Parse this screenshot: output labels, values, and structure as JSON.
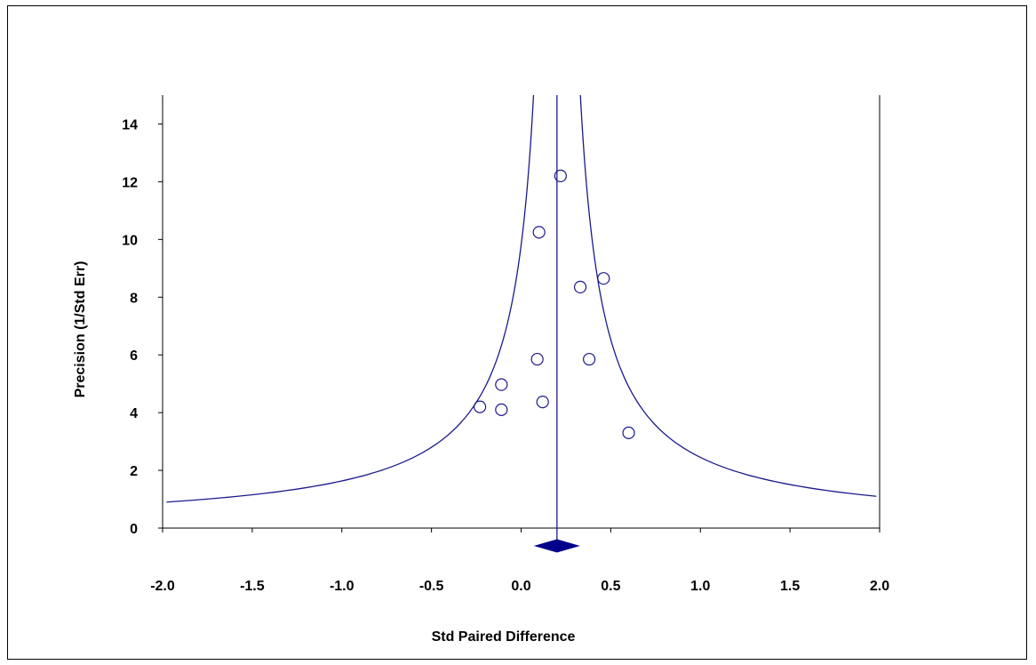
{
  "chart_data": {
    "type": "scatter",
    "title": "",
    "xlabel": "Std Paired Difference",
    "ylabel": "Precision (1/Std Err)",
    "xlim": [
      -2.0,
      2.0
    ],
    "ylim": [
      0,
      15
    ],
    "x_ticks": [
      "-2.0",
      "-1.5",
      "-1.0",
      "-0.5",
      "0.0",
      "0.5",
      "1.0",
      "1.5",
      "2.0"
    ],
    "y_ticks": [
      "0",
      "2",
      "4",
      "6",
      "8",
      "10",
      "12",
      "14"
    ],
    "grid": false,
    "points": [
      {
        "x": 0.22,
        "y": 12.2
      },
      {
        "x": 0.1,
        "y": 10.25
      },
      {
        "x": 0.46,
        "y": 8.65
      },
      {
        "x": 0.33,
        "y": 8.35
      },
      {
        "x": 0.09,
        "y": 5.85
      },
      {
        "x": 0.38,
        "y": 5.85
      },
      {
        "x": -0.11,
        "y": 4.97
      },
      {
        "x": 0.12,
        "y": 4.37
      },
      {
        "x": -0.23,
        "y": 4.2
      },
      {
        "x": -0.11,
        "y": 4.1
      },
      {
        "x": 0.6,
        "y": 3.3
      }
    ],
    "summary_effect": 0.2,
    "summary_ci": [
      0.08,
      0.32
    ],
    "funnel_lines": true,
    "colors": {
      "funnel": "#1a1a8c",
      "summary_diamond": "#00008b",
      "points": "#1a1a8c"
    }
  }
}
